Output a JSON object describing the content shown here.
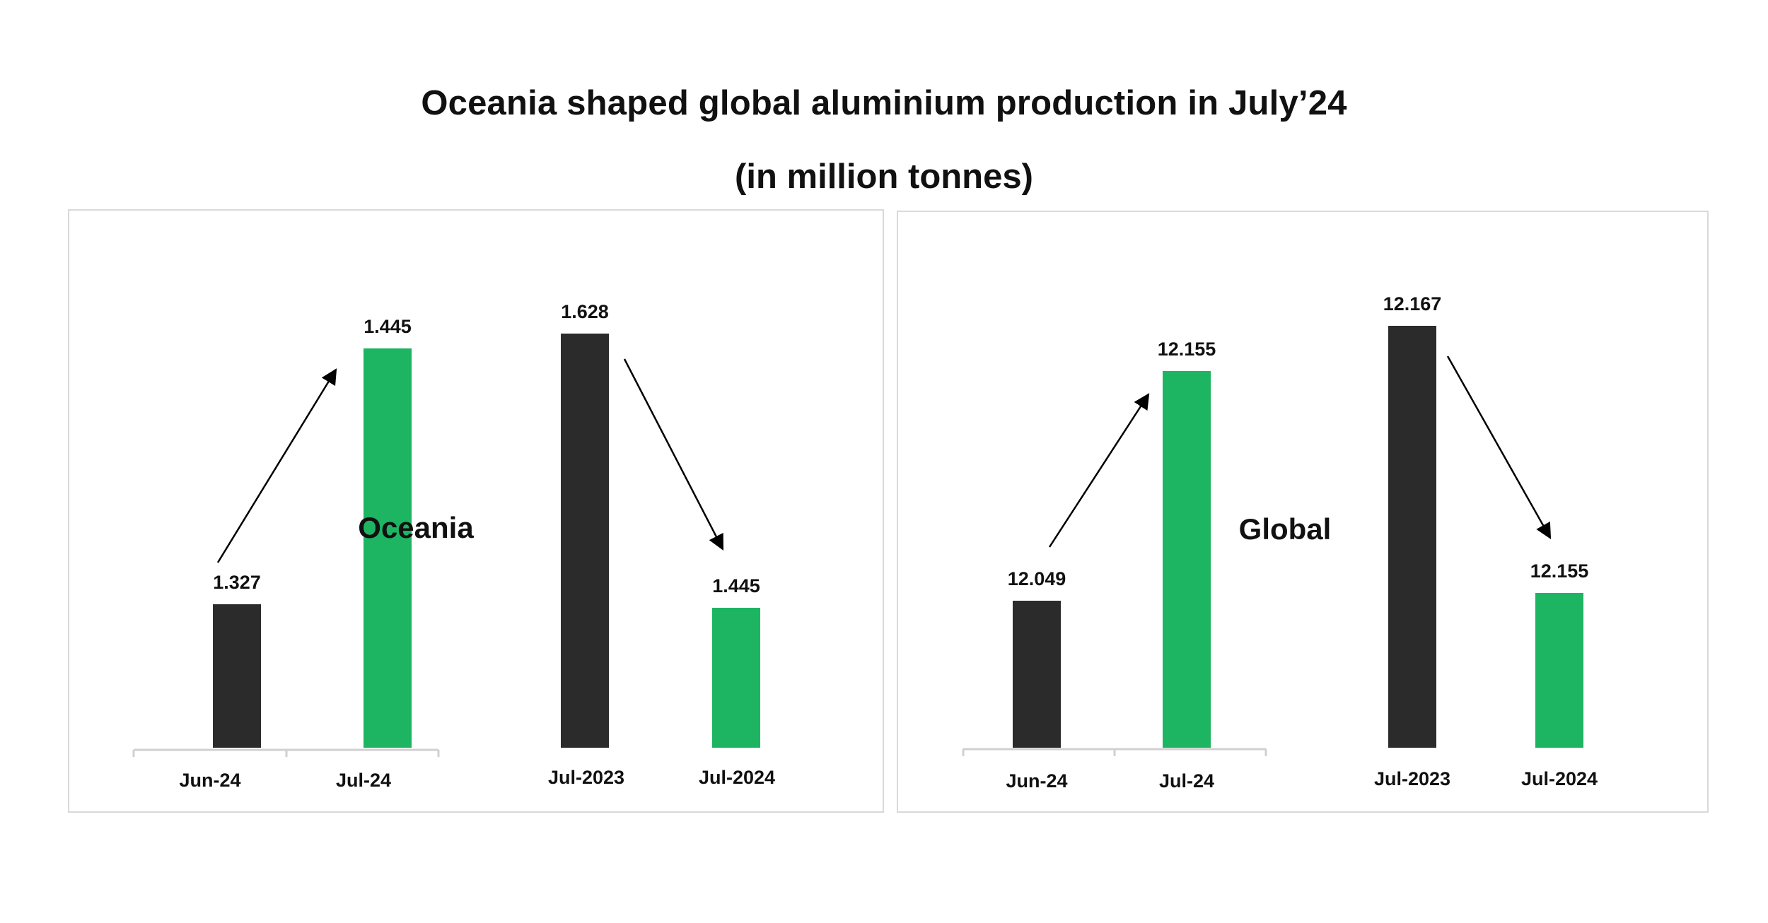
{
  "title": "Oceania shaped global aluminium production in July’24",
  "subtitle": "(in million tonnes)",
  "colors": {
    "dark": "#2b2b2b",
    "green": "#1db562",
    "axis": "#d0d0d0",
    "arrow": "#000000"
  },
  "chart_data": [
    {
      "type": "bar",
      "region_label": "Oceania",
      "groups": [
        {
          "categories": [
            "Jun-24",
            "Jul-24"
          ],
          "values": [
            1.327,
            1.445
          ],
          "labels": [
            "1.327",
            "1.445"
          ],
          "colors": [
            "dark",
            "green"
          ]
        },
        {
          "categories": [
            "Jul-2023",
            "Jul-2024"
          ],
          "values": [
            1.628,
            1.445
          ],
          "labels": [
            "1.628",
            "1.445"
          ],
          "colors": [
            "dark",
            "green"
          ]
        }
      ]
    },
    {
      "type": "bar",
      "region_label": "Global",
      "groups": [
        {
          "categories": [
            "Jun-24",
            "Jul-24"
          ],
          "values": [
            12.049,
            12.155
          ],
          "labels": [
            "12.049",
            "12.155"
          ],
          "colors": [
            "dark",
            "green"
          ]
        },
        {
          "categories": [
            "Jul-2023",
            "Jul-2024"
          ],
          "values": [
            12.167,
            12.155
          ],
          "labels": [
            "12.167",
            "12.155"
          ],
          "colors": [
            "dark",
            "green"
          ]
        }
      ]
    }
  ]
}
